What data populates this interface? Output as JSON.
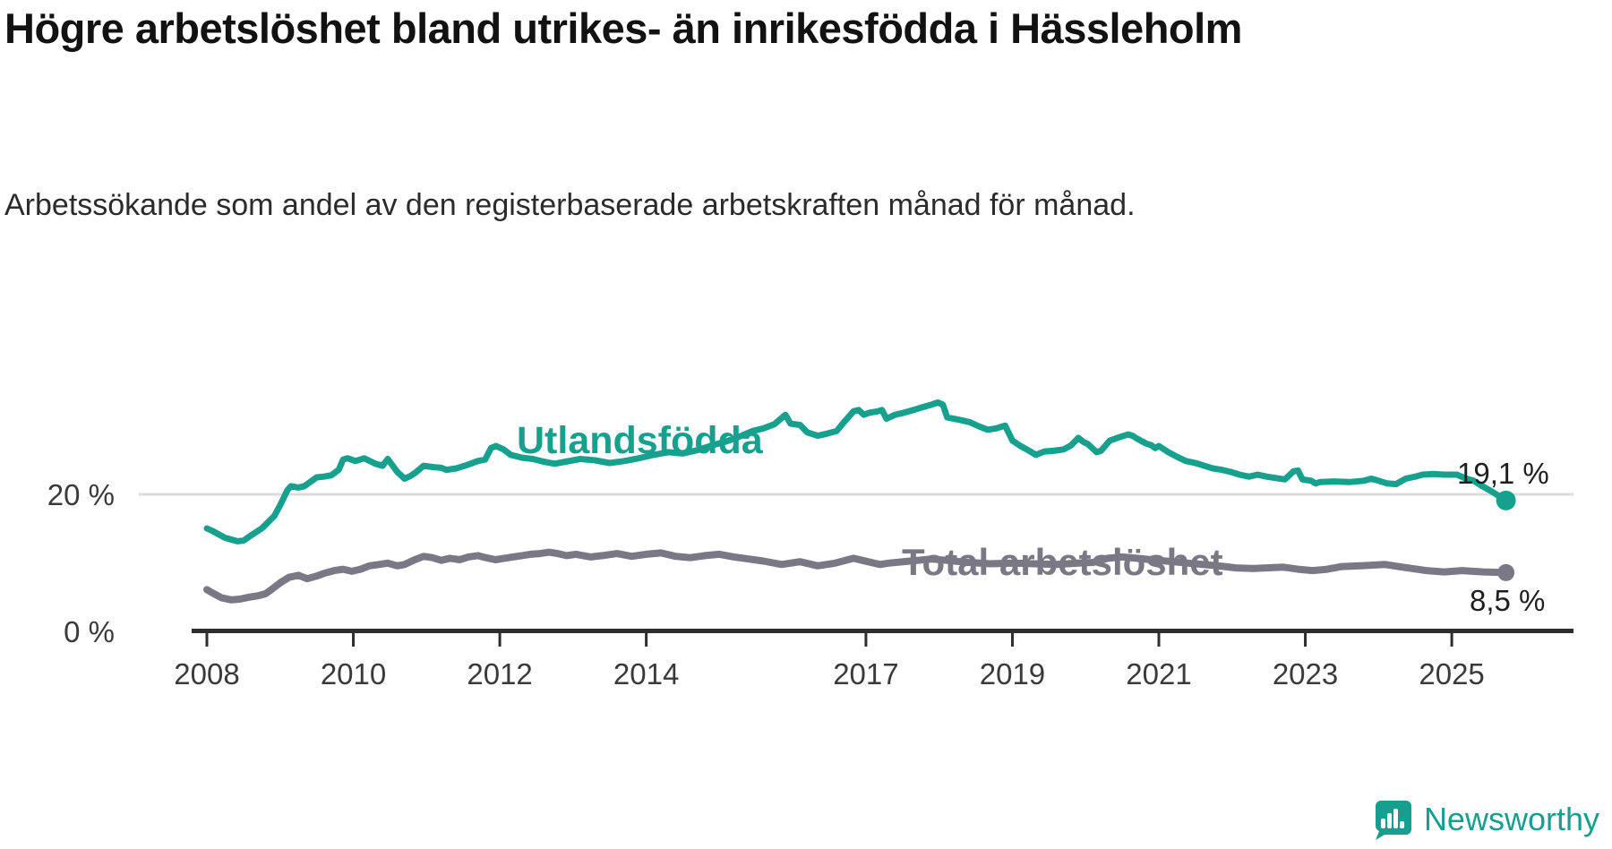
{
  "title": "Högre arbetslöshet bland utrikes- än inrikesfödda i Hässleholm",
  "subtitle": "Arbetssökande som andel av den registerbaserade arbetskraften månad för månad.",
  "logo": {
    "text": "Newsworthy",
    "icon": "bar-chart-speech-bubble",
    "color": "#169f8e"
  },
  "chart_data": {
    "type": "line",
    "title": "Högre arbetslöshet bland utrikes- än inrikesfödda i Hässleholm",
    "xlabel": "",
    "ylabel": "",
    "x_range_years": [
      2008.0,
      2025.74
    ],
    "y_axis": {
      "ticks": [
        {
          "value": 0,
          "label": "0 %"
        },
        {
          "value": 20,
          "label": "20 %"
        }
      ],
      "range": [
        0,
        36
      ],
      "gridline_value": 20
    },
    "x_axis": {
      "ticks": [
        2008,
        2010,
        2012,
        2014,
        2017,
        2019,
        2021,
        2023,
        2025
      ]
    },
    "grid": "horizontal-single",
    "legend_position": "inline-labels",
    "series": [
      {
        "name": "Utlandsfödda",
        "color": "#17a08e",
        "end_label": "19,1 %",
        "last_value": 19.1,
        "points": [
          [
            2008.0,
            15.0
          ],
          [
            2008.08,
            14.6
          ],
          [
            2008.25,
            13.6
          ],
          [
            2008.42,
            13.1
          ],
          [
            2008.5,
            13.2
          ],
          [
            2008.58,
            13.8
          ],
          [
            2008.75,
            15.0
          ],
          [
            2008.92,
            16.8
          ],
          [
            2009.0,
            18.4
          ],
          [
            2009.1,
            20.6
          ],
          [
            2009.15,
            21.2
          ],
          [
            2009.25,
            21.0
          ],
          [
            2009.33,
            21.2
          ],
          [
            2009.5,
            22.5
          ],
          [
            2009.6,
            22.6
          ],
          [
            2009.7,
            22.8
          ],
          [
            2009.8,
            23.6
          ],
          [
            2009.86,
            25.1
          ],
          [
            2009.92,
            25.3
          ],
          [
            2010.03,
            24.9
          ],
          [
            2010.15,
            25.3
          ],
          [
            2010.3,
            24.5
          ],
          [
            2010.4,
            24.2
          ],
          [
            2010.47,
            25.2
          ],
          [
            2010.6,
            23.3
          ],
          [
            2010.7,
            22.3
          ],
          [
            2010.78,
            22.7
          ],
          [
            2010.85,
            23.2
          ],
          [
            2010.96,
            24.2
          ],
          [
            2011.1,
            24.0
          ],
          [
            2011.2,
            23.9
          ],
          [
            2011.27,
            23.6
          ],
          [
            2011.4,
            23.8
          ],
          [
            2011.55,
            24.3
          ],
          [
            2011.7,
            24.9
          ],
          [
            2011.8,
            25.1
          ],
          [
            2011.88,
            26.8
          ],
          [
            2011.95,
            27.1
          ],
          [
            2012.05,
            26.6
          ],
          [
            2012.15,
            25.8
          ],
          [
            2012.3,
            25.4
          ],
          [
            2012.45,
            25.2
          ],
          [
            2012.6,
            24.8
          ],
          [
            2012.75,
            24.5
          ],
          [
            2012.9,
            24.8
          ],
          [
            2013.1,
            25.2
          ],
          [
            2013.3,
            25.0
          ],
          [
            2013.5,
            24.6
          ],
          [
            2013.7,
            24.9
          ],
          [
            2013.9,
            25.3
          ],
          [
            2014.1,
            25.8
          ],
          [
            2014.3,
            26.2
          ],
          [
            2014.5,
            26.0
          ],
          [
            2014.7,
            26.5
          ],
          [
            2014.9,
            27.2
          ],
          [
            2015.1,
            27.8
          ],
          [
            2015.3,
            28.6
          ],
          [
            2015.45,
            29.3
          ],
          [
            2015.6,
            29.7
          ],
          [
            2015.75,
            30.3
          ],
          [
            2015.9,
            31.7
          ],
          [
            2015.97,
            30.4
          ],
          [
            2016.1,
            30.2
          ],
          [
            2016.2,
            29.1
          ],
          [
            2016.34,
            28.6
          ],
          [
            2016.46,
            28.9
          ],
          [
            2016.6,
            29.3
          ],
          [
            2016.7,
            30.6
          ],
          [
            2016.83,
            32.2
          ],
          [
            2016.9,
            32.4
          ],
          [
            2016.97,
            31.7
          ],
          [
            2017.05,
            32.0
          ],
          [
            2017.16,
            32.2
          ],
          [
            2017.22,
            32.4
          ],
          [
            2017.28,
            31.1
          ],
          [
            2017.4,
            31.7
          ],
          [
            2017.52,
            32.0
          ],
          [
            2017.65,
            32.4
          ],
          [
            2017.77,
            32.8
          ],
          [
            2017.9,
            33.2
          ],
          [
            2017.98,
            33.5
          ],
          [
            2018.05,
            33.2
          ],
          [
            2018.11,
            31.3
          ],
          [
            2018.2,
            31.1
          ],
          [
            2018.3,
            30.9
          ],
          [
            2018.42,
            30.6
          ],
          [
            2018.54,
            30.0
          ],
          [
            2018.66,
            29.5
          ],
          [
            2018.78,
            29.7
          ],
          [
            2018.9,
            30.1
          ],
          [
            2019.0,
            27.9
          ],
          [
            2019.11,
            27.1
          ],
          [
            2019.23,
            26.4
          ],
          [
            2019.32,
            25.8
          ],
          [
            2019.44,
            26.3
          ],
          [
            2019.56,
            26.4
          ],
          [
            2019.7,
            26.6
          ],
          [
            2019.8,
            27.2
          ],
          [
            2019.9,
            28.3
          ],
          [
            2019.97,
            27.7
          ],
          [
            2020.03,
            27.4
          ],
          [
            2020.15,
            26.2
          ],
          [
            2020.21,
            26.4
          ],
          [
            2020.33,
            27.9
          ],
          [
            2020.46,
            28.4
          ],
          [
            2020.58,
            28.8
          ],
          [
            2020.64,
            28.6
          ],
          [
            2020.7,
            28.2
          ],
          [
            2020.82,
            27.5
          ],
          [
            2020.9,
            27.2
          ],
          [
            2020.95,
            26.8
          ],
          [
            2021.0,
            27.1
          ],
          [
            2021.13,
            26.2
          ],
          [
            2021.25,
            25.5
          ],
          [
            2021.37,
            24.9
          ],
          [
            2021.5,
            24.6
          ],
          [
            2021.62,
            24.2
          ],
          [
            2021.74,
            23.8
          ],
          [
            2021.86,
            23.6
          ],
          [
            2021.98,
            23.3
          ],
          [
            2022.1,
            22.9
          ],
          [
            2022.23,
            22.6
          ],
          [
            2022.35,
            22.9
          ],
          [
            2022.47,
            22.6
          ],
          [
            2022.6,
            22.4
          ],
          [
            2022.72,
            22.2
          ],
          [
            2022.84,
            23.4
          ],
          [
            2022.9,
            23.5
          ],
          [
            2022.96,
            22.2
          ],
          [
            2023.08,
            22.0
          ],
          [
            2023.14,
            21.6
          ],
          [
            2023.2,
            21.8
          ],
          [
            2023.4,
            21.9
          ],
          [
            2023.6,
            21.8
          ],
          [
            2023.8,
            22.0
          ],
          [
            2023.9,
            22.3
          ],
          [
            2024.0,
            22.0
          ],
          [
            2024.12,
            21.6
          ],
          [
            2024.24,
            21.5
          ],
          [
            2024.37,
            22.3
          ],
          [
            2024.5,
            22.6
          ],
          [
            2024.6,
            22.9
          ],
          [
            2024.75,
            23.0
          ],
          [
            2024.9,
            22.9
          ],
          [
            2025.07,
            22.9
          ],
          [
            2025.2,
            22.3
          ],
          [
            2025.3,
            22.0
          ],
          [
            2025.4,
            21.3
          ],
          [
            2025.55,
            20.4
          ],
          [
            2025.74,
            19.1
          ]
        ]
      },
      {
        "name": "Total arbetslöshet",
        "color": "#7a7884",
        "end_label": "8,5 %",
        "last_value": 8.5,
        "points": [
          [
            2008.0,
            6.0
          ],
          [
            2008.08,
            5.5
          ],
          [
            2008.2,
            4.8
          ],
          [
            2008.33,
            4.5
          ],
          [
            2008.45,
            4.6
          ],
          [
            2008.58,
            4.9
          ],
          [
            2008.7,
            5.1
          ],
          [
            2008.8,
            5.4
          ],
          [
            2008.88,
            6.0
          ],
          [
            2009.0,
            7.0
          ],
          [
            2009.12,
            7.8
          ],
          [
            2009.25,
            8.1
          ],
          [
            2009.37,
            7.6
          ],
          [
            2009.5,
            8.0
          ],
          [
            2009.6,
            8.4
          ],
          [
            2009.74,
            8.8
          ],
          [
            2009.86,
            9.0
          ],
          [
            2009.98,
            8.7
          ],
          [
            2010.1,
            9.0
          ],
          [
            2010.22,
            9.5
          ],
          [
            2010.35,
            9.7
          ],
          [
            2010.47,
            9.9
          ],
          [
            2010.6,
            9.5
          ],
          [
            2010.7,
            9.7
          ],
          [
            2010.84,
            10.4
          ],
          [
            2010.96,
            10.9
          ],
          [
            2011.08,
            10.7
          ],
          [
            2011.2,
            10.3
          ],
          [
            2011.32,
            10.6
          ],
          [
            2011.45,
            10.4
          ],
          [
            2011.57,
            10.8
          ],
          [
            2011.7,
            11.0
          ],
          [
            2011.81,
            10.7
          ],
          [
            2011.94,
            10.4
          ],
          [
            2012.06,
            10.6
          ],
          [
            2012.18,
            10.8
          ],
          [
            2012.3,
            11.0
          ],
          [
            2012.42,
            11.2
          ],
          [
            2012.55,
            11.3
          ],
          [
            2012.67,
            11.5
          ],
          [
            2012.79,
            11.3
          ],
          [
            2012.91,
            11.0
          ],
          [
            2013.04,
            11.2
          ],
          [
            2013.24,
            10.8
          ],
          [
            2013.4,
            11.0
          ],
          [
            2013.6,
            11.3
          ],
          [
            2013.8,
            10.9
          ],
          [
            2014.0,
            11.2
          ],
          [
            2014.2,
            11.4
          ],
          [
            2014.4,
            10.9
          ],
          [
            2014.6,
            10.7
          ],
          [
            2014.8,
            11.0
          ],
          [
            2015.0,
            11.2
          ],
          [
            2015.2,
            10.8
          ],
          [
            2015.4,
            10.5
          ],
          [
            2015.6,
            10.2
          ],
          [
            2015.85,
            9.7
          ],
          [
            2016.1,
            10.1
          ],
          [
            2016.34,
            9.5
          ],
          [
            2016.58,
            9.9
          ],
          [
            2016.83,
            10.6
          ],
          [
            2016.95,
            10.3
          ],
          [
            2017.19,
            9.7
          ],
          [
            2017.31,
            9.9
          ],
          [
            2017.6,
            10.2
          ],
          [
            2017.9,
            10.5
          ],
          [
            2018.1,
            10.3
          ],
          [
            2018.4,
            10.0
          ],
          [
            2018.7,
            9.8
          ],
          [
            2019.0,
            9.9
          ],
          [
            2019.3,
            9.8
          ],
          [
            2019.6,
            9.7
          ],
          [
            2019.9,
            9.9
          ],
          [
            2020.1,
            10.0
          ],
          [
            2020.3,
            10.6
          ],
          [
            2020.5,
            10.8
          ],
          [
            2020.7,
            10.6
          ],
          [
            2020.9,
            10.4
          ],
          [
            2021.1,
            10.2
          ],
          [
            2021.4,
            9.9
          ],
          [
            2021.7,
            9.6
          ],
          [
            2021.9,
            9.4
          ],
          [
            2022.05,
            9.2
          ],
          [
            2022.3,
            9.1
          ],
          [
            2022.7,
            9.3
          ],
          [
            2022.9,
            9.0
          ],
          [
            2023.1,
            8.8
          ],
          [
            2023.3,
            9.0
          ],
          [
            2023.5,
            9.4
          ],
          [
            2023.75,
            9.5
          ],
          [
            2024.09,
            9.7
          ],
          [
            2024.33,
            9.3
          ],
          [
            2024.65,
            8.8
          ],
          [
            2024.9,
            8.6
          ],
          [
            2025.14,
            8.8
          ],
          [
            2025.43,
            8.6
          ],
          [
            2025.74,
            8.5
          ]
        ]
      }
    ]
  }
}
